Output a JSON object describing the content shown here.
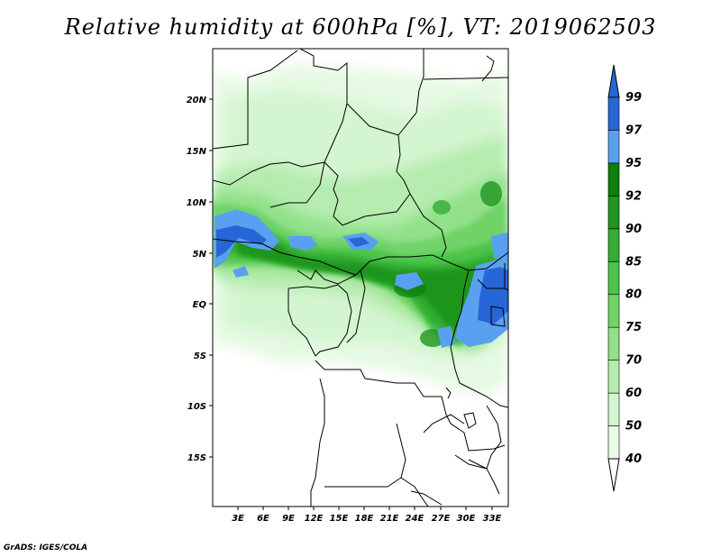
{
  "title": "Relative humidity at 600hPa [%], VT: 2019062503",
  "credit": "GrADS: IGES/COLA",
  "lat_labels": [
    "20N",
    "15N",
    "10N",
    "5N",
    "EQ",
    "5S",
    "10S",
    "15S"
  ],
  "lon_labels": [
    "3E",
    "6E",
    "9E",
    "12E",
    "15E",
    "18E",
    "21E",
    "24E",
    "27E",
    "30E",
    "33E"
  ],
  "colorbar": {
    "levels": [
      "40",
      "50",
      "60",
      "70",
      "75",
      "80",
      "85",
      "90",
      "92",
      "95",
      "97",
      "99"
    ],
    "colors": [
      "#e9fbe7",
      "#d3f5cf",
      "#b6ecaf",
      "#92e08a",
      "#6fd368",
      "#4cc44a",
      "#33ad33",
      "#1f951f",
      "#0c7f0c",
      "#5aa0f0",
      "#2666d6"
    ],
    "arrow_top_color": "#2666d6",
    "arrow_bottom_color": "#ffffff"
  }
}
